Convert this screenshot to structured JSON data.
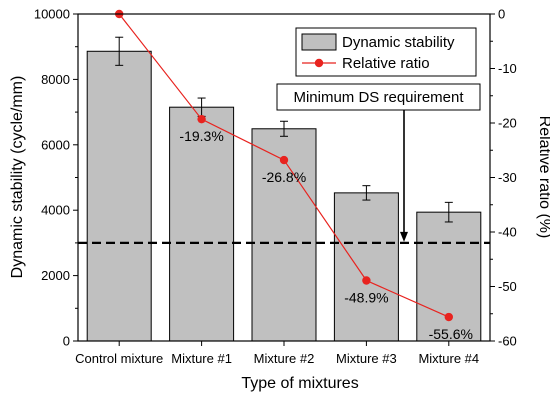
{
  "chart_data": {
    "type": "bar",
    "categories": [
      "Control mixture",
      "Mixture #1",
      "Mixture #2",
      "Mixture #3",
      "Mixture #4"
    ],
    "series": [
      {
        "name": "Dynamic stability",
        "axis": "left",
        "kind": "bar",
        "values": [
          8860,
          7150,
          6490,
          4530,
          3940
        ],
        "error": [
          430,
          280,
          230,
          220,
          300
        ],
        "color": "#c0c0c0"
      },
      {
        "name": "Relative ratio",
        "axis": "right",
        "kind": "line",
        "values": [
          0,
          -19.3,
          -26.8,
          -48.9,
          -55.6
        ],
        "color": "#e8231f"
      }
    ],
    "data_labels": [
      "",
      "-19.3%",
      "-26.8%",
      "-48.9%",
      "-55.6%"
    ],
    "xlabel": "Type of mixtures",
    "ylabel_left": "Dynamic stability (cycle/mm)",
    "ylabel_right": "Relative ratio (%)",
    "ylim_left": [
      0,
      10000
    ],
    "ylim_right": [
      -60,
      0
    ],
    "yticks_left": [
      0,
      2000,
      4000,
      6000,
      8000,
      10000
    ],
    "yticks_right": [
      0,
      -10,
      -20,
      -30,
      -40,
      -50,
      -60
    ],
    "grid": false,
    "legend_position": "top-right",
    "reference_line": {
      "label": "Minimum DS requirement",
      "value": 3000,
      "style": "dashed"
    }
  }
}
